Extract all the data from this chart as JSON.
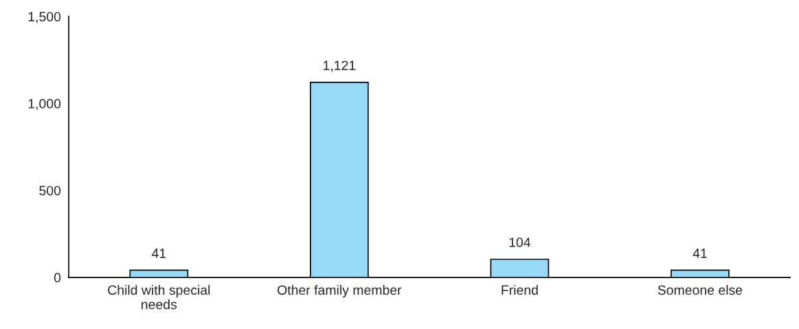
{
  "chart_data": {
    "type": "bar",
    "categories": [
      "Child with special needs",
      "Other family member",
      "Friend",
      "Someone else"
    ],
    "values": [
      41,
      1121,
      104,
      41
    ],
    "value_labels": [
      "41",
      "1,121",
      "104",
      "41"
    ],
    "color": "#97d9f7",
    "ylim": [
      0,
      1500
    ],
    "yticks": [
      0,
      500,
      {
        "value": 1000,
        "label": "1,000"
      },
      {
        "value": 1500,
        "label": "1,500"
      }
    ],
    "grid": false,
    "legend": false
  }
}
